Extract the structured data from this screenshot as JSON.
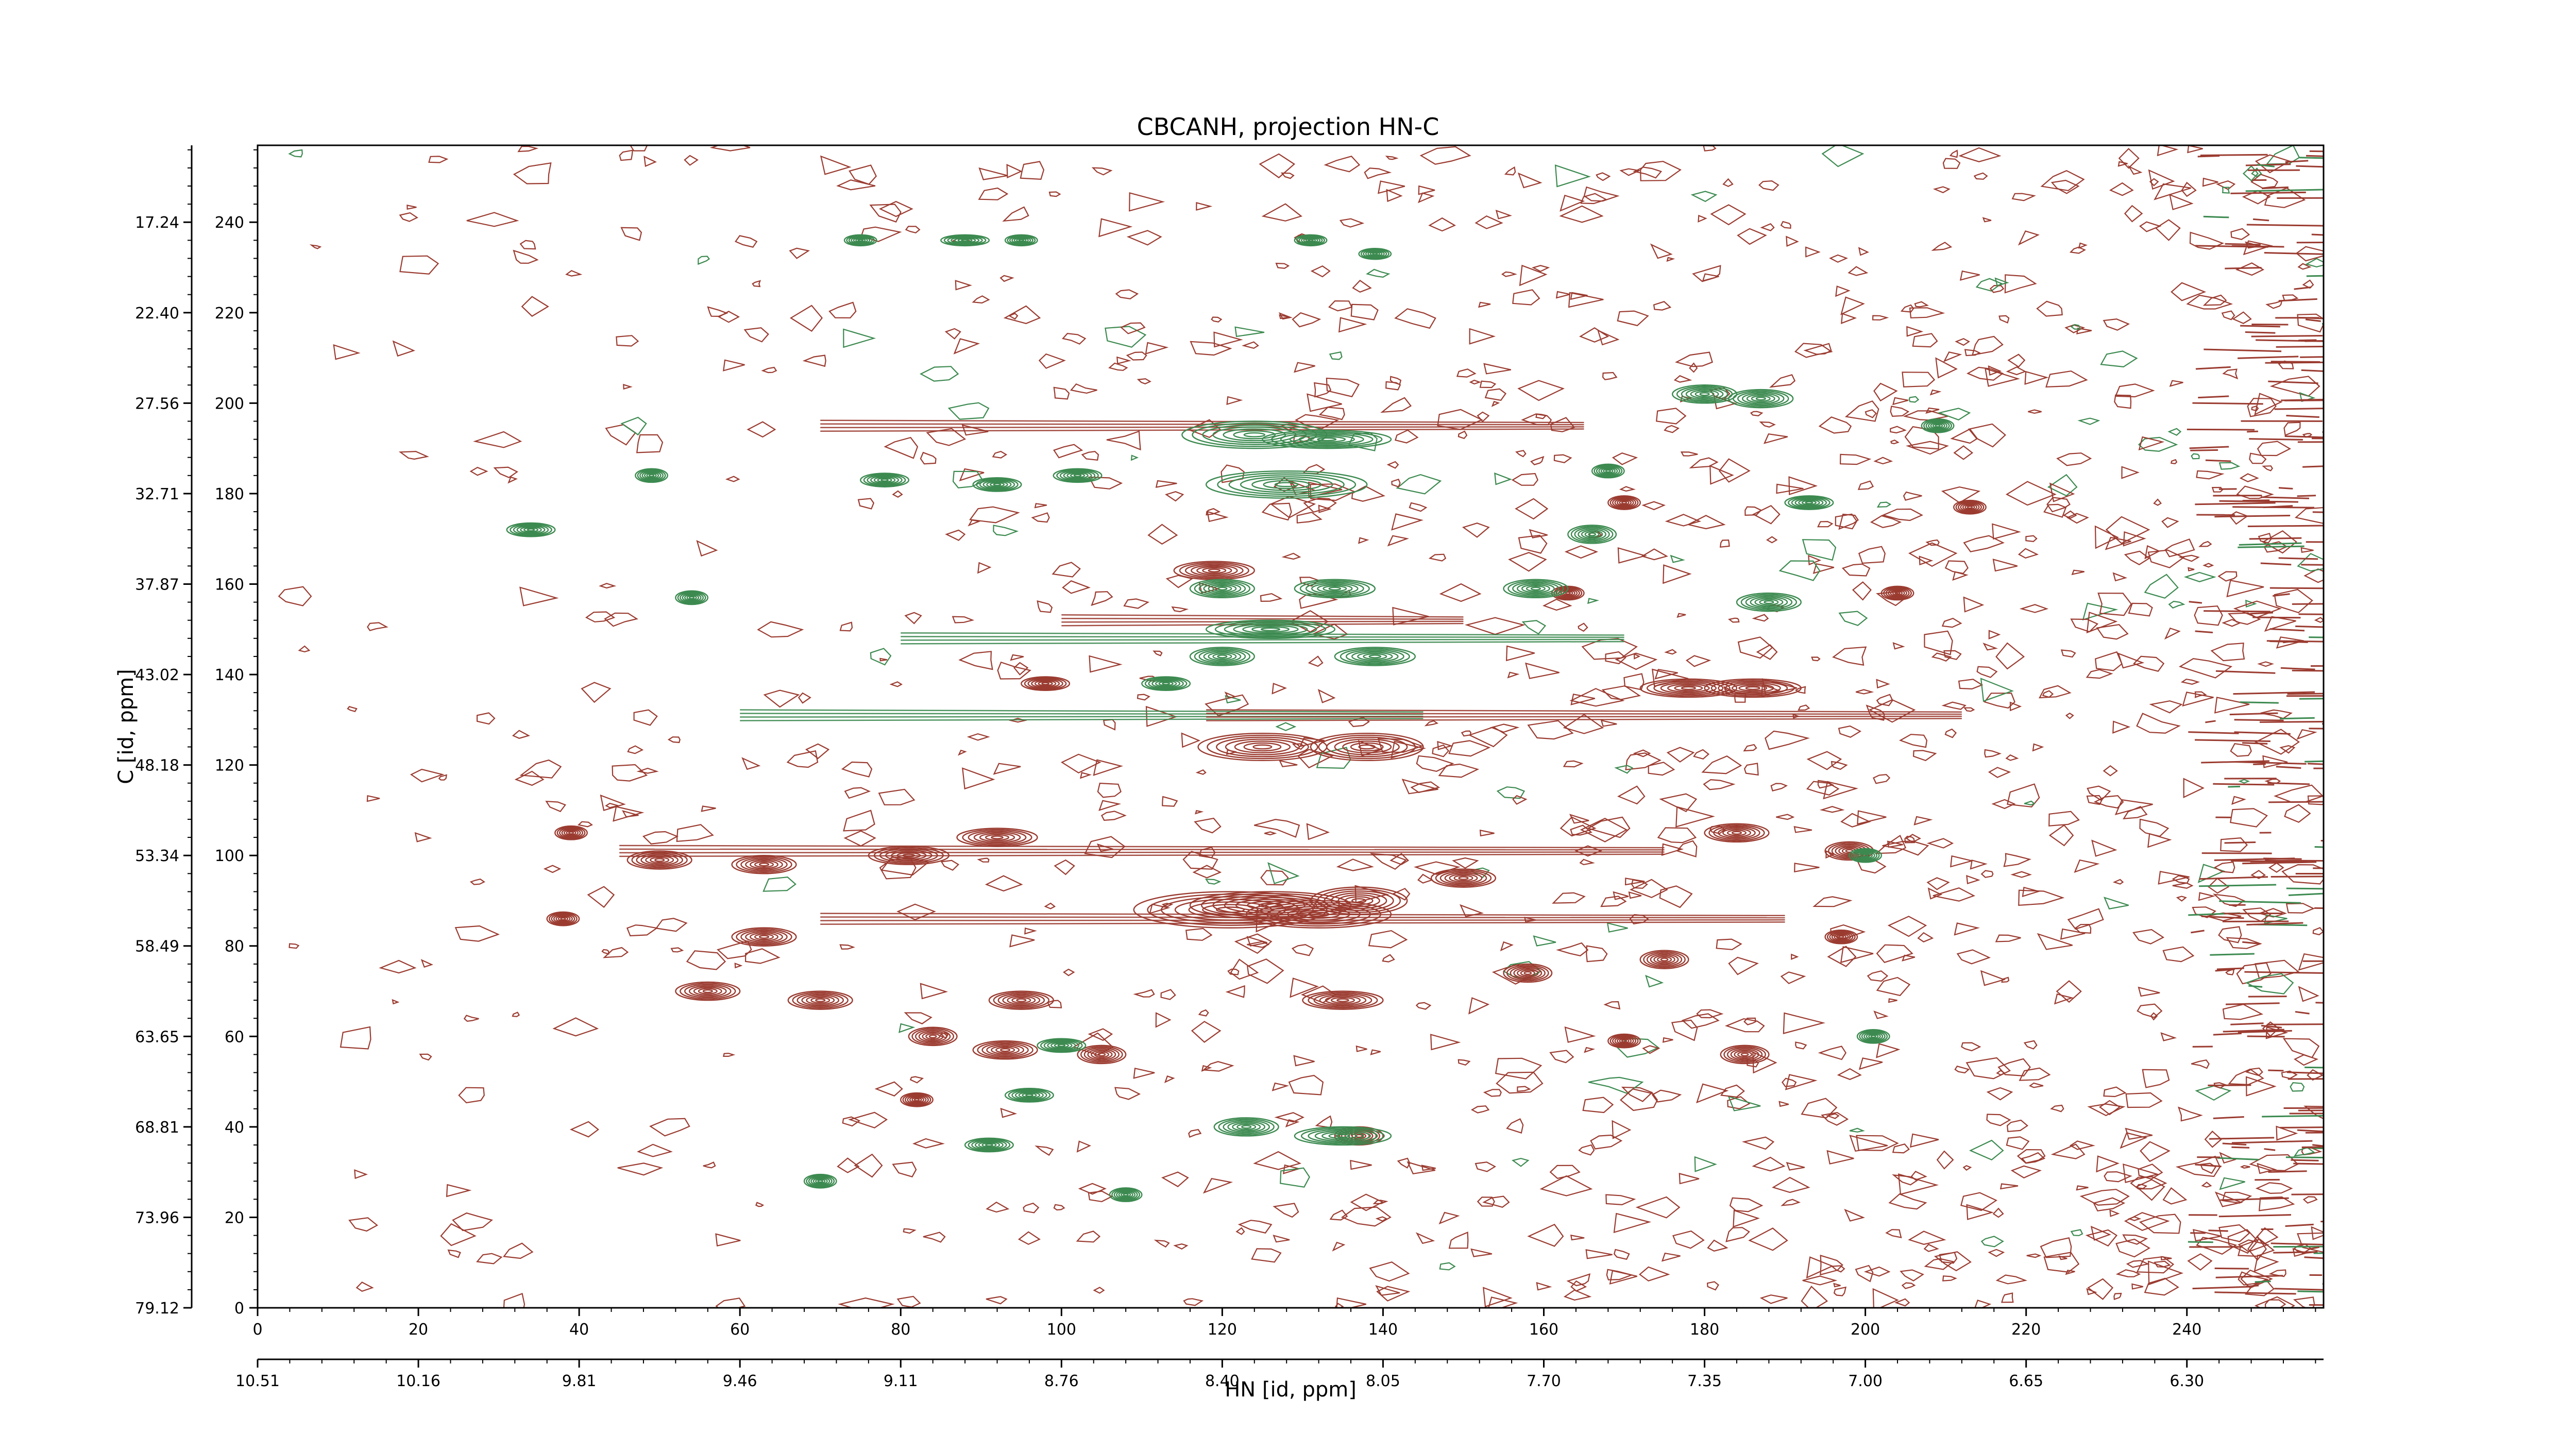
{
  "chart_data": {
    "type": "contour",
    "title": "CBCANH, projection HN-C",
    "xlabel": "HN [id, ppm]",
    "ylabel": "C [id, ppm]",
    "x_index_range": [
      0,
      257
    ],
    "y_index_range": [
      0,
      257
    ],
    "x_index_ticks": [
      0,
      20,
      40,
      60,
      80,
      100,
      120,
      140,
      160,
      180,
      200,
      220,
      240
    ],
    "y_index_ticks": [
      0,
      20,
      40,
      60,
      80,
      100,
      120,
      140,
      160,
      180,
      200,
      220,
      240
    ],
    "x_ppm_ticks": [
      "10.51",
      "10.16",
      "9.81",
      "9.46",
      "9.11",
      "8.76",
      "8.40",
      "8.05",
      "7.70",
      "7.35",
      "7.00",
      "6.65",
      "6.30"
    ],
    "y_ppm_ticks": [
      "79.12",
      "73.96",
      "68.81",
      "63.65",
      "58.49",
      "53.34",
      "48.18",
      "43.02",
      "37.87",
      "32.71",
      "27.56",
      "22.40",
      "17.24"
    ],
    "colors": {
      "positive": "#9b3b30",
      "negative": "#3c8a50"
    },
    "series": [
      {
        "sign": "positive",
        "peaks": [
          {
            "x": 121,
            "y": 88,
            "rx": 12,
            "ry": 4
          },
          {
            "x": 126,
            "y": 89,
            "rx": 10,
            "ry": 3
          },
          {
            "x": 132,
            "y": 87,
            "rx": 9,
            "ry": 3
          },
          {
            "x": 137,
            "y": 90,
            "rx": 6,
            "ry": 3
          },
          {
            "x": 125,
            "y": 124,
            "rx": 8,
            "ry": 3
          },
          {
            "x": 138,
            "y": 124,
            "rx": 7,
            "ry": 3
          },
          {
            "x": 178,
            "y": 137,
            "rx": 6,
            "ry": 2
          },
          {
            "x": 186,
            "y": 137,
            "rx": 6,
            "ry": 2
          },
          {
            "x": 81,
            "y": 100,
            "rx": 5,
            "ry": 2
          },
          {
            "x": 92,
            "y": 104,
            "rx": 5,
            "ry": 2
          },
          {
            "x": 63,
            "y": 98,
            "rx": 4,
            "ry": 2
          },
          {
            "x": 50,
            "y": 99,
            "rx": 4,
            "ry": 2
          },
          {
            "x": 63,
            "y": 82,
            "rx": 4,
            "ry": 2
          },
          {
            "x": 56,
            "y": 70,
            "rx": 4,
            "ry": 2
          },
          {
            "x": 70,
            "y": 68,
            "rx": 4,
            "ry": 2
          },
          {
            "x": 95,
            "y": 68,
            "rx": 4,
            "ry": 2
          },
          {
            "x": 93,
            "y": 57,
            "rx": 4,
            "ry": 2
          },
          {
            "x": 105,
            "y": 56,
            "rx": 3,
            "ry": 2
          },
          {
            "x": 135,
            "y": 68,
            "rx": 5,
            "ry": 2
          },
          {
            "x": 158,
            "y": 74,
            "rx": 3,
            "ry": 2
          },
          {
            "x": 175,
            "y": 77,
            "rx": 3,
            "ry": 2
          },
          {
            "x": 150,
            "y": 95,
            "rx": 4,
            "ry": 2
          },
          {
            "x": 184,
            "y": 105,
            "rx": 4,
            "ry": 2
          },
          {
            "x": 198,
            "y": 101,
            "rx": 3,
            "ry": 2
          },
          {
            "x": 197,
            "y": 82,
            "rx": 2,
            "ry": 1.5
          },
          {
            "x": 185,
            "y": 56,
            "rx": 3,
            "ry": 2
          },
          {
            "x": 170,
            "y": 59,
            "rx": 2,
            "ry": 1.5
          },
          {
            "x": 98,
            "y": 138,
            "rx": 3,
            "ry": 1.5
          },
          {
            "x": 163,
            "y": 158,
            "rx": 2,
            "ry": 1.5
          },
          {
            "x": 204,
            "y": 158,
            "rx": 2,
            "ry": 1.5
          },
          {
            "x": 213,
            "y": 177,
            "rx": 2,
            "ry": 1.5
          },
          {
            "x": 170,
            "y": 178,
            "rx": 2,
            "ry": 1.5
          },
          {
            "x": 119,
            "y": 163,
            "rx": 5,
            "ry": 2
          },
          {
            "x": 39,
            "y": 105,
            "rx": 2,
            "ry": 1.5
          },
          {
            "x": 38,
            "y": 86,
            "rx": 2,
            "ry": 1.5
          },
          {
            "x": 84,
            "y": 60,
            "rx": 3,
            "ry": 2
          },
          {
            "x": 82,
            "y": 46,
            "rx": 2,
            "ry": 1.5
          },
          {
            "x": 137,
            "y": 38,
            "rx": 3,
            "ry": 2
          }
        ]
      },
      {
        "sign": "negative",
        "peaks": [
          {
            "x": 124,
            "y": 193,
            "rx": 9,
            "ry": 3
          },
          {
            "x": 133,
            "y": 192,
            "rx": 8,
            "ry": 2
          },
          {
            "x": 128,
            "y": 182,
            "rx": 10,
            "ry": 3
          },
          {
            "x": 120,
            "y": 159,
            "rx": 4,
            "ry": 2
          },
          {
            "x": 134,
            "y": 159,
            "rx": 5,
            "ry": 2
          },
          {
            "x": 126,
            "y": 150,
            "rx": 8,
            "ry": 2
          },
          {
            "x": 120,
            "y": 144,
            "rx": 4,
            "ry": 2
          },
          {
            "x": 139,
            "y": 144,
            "rx": 5,
            "ry": 2
          },
          {
            "x": 123,
            "y": 40,
            "rx": 4,
            "ry": 2
          },
          {
            "x": 135,
            "y": 38,
            "rx": 6,
            "ry": 2
          },
          {
            "x": 78,
            "y": 183,
            "rx": 3,
            "ry": 1.5
          },
          {
            "x": 92,
            "y": 182,
            "rx": 3,
            "ry": 1.5
          },
          {
            "x": 102,
            "y": 184,
            "rx": 3,
            "ry": 1.5
          },
          {
            "x": 75,
            "y": 236,
            "rx": 2,
            "ry": 1.2
          },
          {
            "x": 88,
            "y": 236,
            "rx": 3,
            "ry": 1.2
          },
          {
            "x": 95,
            "y": 236,
            "rx": 2,
            "ry": 1.2
          },
          {
            "x": 131,
            "y": 236,
            "rx": 2,
            "ry": 1.2
          },
          {
            "x": 139,
            "y": 233,
            "rx": 2,
            "ry": 1.2
          },
          {
            "x": 180,
            "y": 202,
            "rx": 4,
            "ry": 2
          },
          {
            "x": 187,
            "y": 201,
            "rx": 4,
            "ry": 2
          },
          {
            "x": 168,
            "y": 185,
            "rx": 2,
            "ry": 1.5
          },
          {
            "x": 166,
            "y": 171,
            "rx": 3,
            "ry": 2
          },
          {
            "x": 159,
            "y": 159,
            "rx": 4,
            "ry": 2
          },
          {
            "x": 188,
            "y": 156,
            "rx": 4,
            "ry": 2
          },
          {
            "x": 193,
            "y": 178,
            "rx": 3,
            "ry": 1.5
          },
          {
            "x": 209,
            "y": 195,
            "rx": 2,
            "ry": 1.5
          },
          {
            "x": 54,
            "y": 157,
            "rx": 2,
            "ry": 1.5
          },
          {
            "x": 49,
            "y": 184,
            "rx": 2,
            "ry": 1.5
          },
          {
            "x": 34,
            "y": 172,
            "rx": 3,
            "ry": 1.5
          },
          {
            "x": 96,
            "y": 47,
            "rx": 3,
            "ry": 1.5
          },
          {
            "x": 91,
            "y": 36,
            "rx": 3,
            "ry": 1.5
          },
          {
            "x": 70,
            "y": 28,
            "rx": 2,
            "ry": 1.5
          },
          {
            "x": 108,
            "y": 25,
            "rx": 2,
            "ry": 1.5
          },
          {
            "x": 200,
            "y": 100,
            "rx": 2,
            "ry": 1.5
          },
          {
            "x": 201,
            "y": 60,
            "rx": 2,
            "ry": 1.5
          },
          {
            "x": 113,
            "y": 138,
            "rx": 3,
            "ry": 1.5
          },
          {
            "x": 100,
            "y": 58,
            "rx": 3,
            "ry": 1.5
          }
        ]
      }
    ],
    "ridges": [
      {
        "sign": "negative",
        "y": 131,
        "x_from": 60,
        "x_to": 145
      },
      {
        "sign": "positive",
        "y": 131,
        "x_from": 118,
        "x_to": 212
      },
      {
        "sign": "positive",
        "y": 195,
        "x_from": 70,
        "x_to": 165
      },
      {
        "sign": "positive",
        "y": 86,
        "x_from": 70,
        "x_to": 190
      },
      {
        "sign": "positive",
        "y": 101,
        "x_from": 45,
        "x_to": 175
      },
      {
        "sign": "negative",
        "y": 148,
        "x_from": 80,
        "x_to": 170
      },
      {
        "sign": "positive",
        "y": 152,
        "x_from": 100,
        "x_to": 150
      }
    ]
  }
}
